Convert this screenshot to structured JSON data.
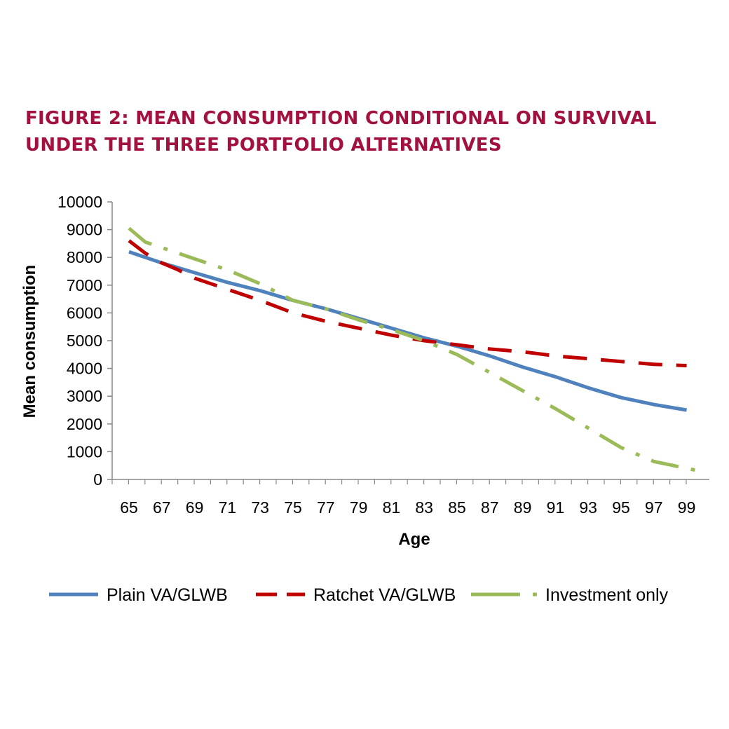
{
  "chart_data": {
    "type": "line",
    "title_lines": [
      "FIGURE 2: MEAN CONSUMPTION CONDITIONAL ON SURVIVAL",
      "UNDER THE THREE PORTFOLIO ALTERNATIVES"
    ],
    "xlabel": "Age",
    "ylabel": "Mean consumption",
    "xlim": [
      65,
      100
    ],
    "ylim": [
      0,
      10000
    ],
    "x_ticks": [
      65,
      67,
      69,
      71,
      73,
      75,
      77,
      79,
      81,
      83,
      85,
      87,
      89,
      91,
      93,
      95,
      97,
      99
    ],
    "y_ticks": [
      0,
      1000,
      2000,
      3000,
      4000,
      5000,
      6000,
      7000,
      8000,
      9000,
      10000
    ],
    "grid": false,
    "legend_position": "bottom",
    "series": [
      {
        "name": "Plain VA/GLWB",
        "color": "#4f81bd",
        "dash": "solid",
        "x": [
          65,
          67,
          69,
          71,
          73,
          75,
          77,
          79,
          81,
          83,
          85,
          87,
          89,
          91,
          93,
          95,
          97,
          99
        ],
        "values": [
          8200,
          7800,
          7450,
          7100,
          6800,
          6450,
          6150,
          5800,
          5450,
          5100,
          4800,
          4450,
          4050,
          3700,
          3300,
          2950,
          2700,
          2500
        ]
      },
      {
        "name": "Ratchet VA/GLWB",
        "color": "#c00000",
        "dash": "long-dash",
        "x": [
          65,
          66,
          67,
          68,
          69,
          71,
          73,
          75,
          77,
          79,
          81,
          83,
          85,
          87,
          89,
          91,
          93,
          95,
          97,
          99
        ],
        "values": [
          8600,
          8150,
          7800,
          7550,
          7250,
          6850,
          6450,
          6000,
          5700,
          5450,
          5200,
          5000,
          4850,
          4700,
          4600,
          4450,
          4350,
          4250,
          4150,
          4100
        ]
      },
      {
        "name": "Investment only",
        "color": "#9bbb59",
        "dash": "long-dash-dot",
        "x": [
          65,
          66,
          67,
          69,
          71,
          73,
          75,
          77,
          79,
          81,
          83,
          85,
          87,
          89,
          91,
          93,
          95,
          97,
          99,
          100
        ],
        "values": [
          9050,
          8550,
          8350,
          7950,
          7550,
          7050,
          6450,
          6150,
          5750,
          5400,
          5000,
          4500,
          3850,
          3200,
          2550,
          1850,
          1150,
          650,
          400,
          280
        ]
      }
    ]
  }
}
